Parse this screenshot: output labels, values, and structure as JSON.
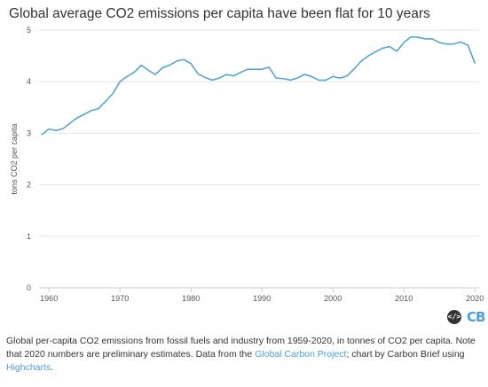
{
  "title": "Global average CO2 emissions per capita have been flat for 10 years",
  "chart_data": {
    "type": "line",
    "title": "Global average CO2 emissions per capita have been flat for 10 years",
    "xlabel": "",
    "ylabel": "tons CO2 per capita",
    "xlim": [
      1959,
      2020
    ],
    "ylim": [
      0,
      5
    ],
    "x_ticks": [
      1960,
      1970,
      1980,
      1990,
      2000,
      2010,
      2020
    ],
    "y_ticks": [
      0,
      1,
      2,
      3,
      4,
      5
    ],
    "grid": true,
    "legend": "none",
    "series": [
      {
        "color": "#4aa0d6",
        "x": [
          1959,
          1960,
          1961,
          1962,
          1963,
          1964,
          1965,
          1966,
          1967,
          1968,
          1969,
          1970,
          1971,
          1972,
          1973,
          1974,
          1975,
          1976,
          1977,
          1978,
          1979,
          1980,
          1981,
          1982,
          1983,
          1984,
          1985,
          1986,
          1987,
          1988,
          1989,
          1990,
          1991,
          1992,
          1993,
          1994,
          1995,
          1996,
          1997,
          1998,
          1999,
          2000,
          2001,
          2002,
          2003,
          2004,
          2005,
          2006,
          2007,
          2008,
          2009,
          2010,
          2011,
          2012,
          2013,
          2014,
          2015,
          2016,
          2017,
          2018,
          2019,
          2020
        ],
        "y": [
          2.97,
          3.08,
          3.05,
          3.09,
          3.2,
          3.3,
          3.37,
          3.44,
          3.48,
          3.62,
          3.77,
          4.0,
          4.1,
          4.18,
          4.32,
          4.22,
          4.14,
          4.27,
          4.32,
          4.4,
          4.43,
          4.35,
          4.15,
          4.08,
          4.03,
          4.07,
          4.14,
          4.11,
          4.18,
          4.24,
          4.24,
          4.24,
          4.28,
          4.07,
          4.06,
          4.03,
          4.07,
          4.14,
          4.1,
          4.03,
          4.03,
          4.1,
          4.07,
          4.11,
          4.25,
          4.4,
          4.5,
          4.58,
          4.65,
          4.68,
          4.59,
          4.76,
          4.87,
          4.86,
          4.83,
          4.83,
          4.76,
          4.73,
          4.73,
          4.77,
          4.71,
          4.36
        ]
      }
    ]
  },
  "icons": {
    "embed": "embed-code-icon",
    "embed_text": "</>",
    "logo": "CB",
    "logo_name": "carbon-brief-logo"
  },
  "caption": {
    "text1": "Global per-capita CO2 emissions from fossil fuels and industry from 1959-2020, in tonnes of CO2 per capita. Note that 2020 numbers are preliminary estimates. Data from the ",
    "link1": "Global Carbon Project",
    "text2": "; chart by Carbon Brief using ",
    "link2": "Highcharts",
    "text3": "."
  }
}
